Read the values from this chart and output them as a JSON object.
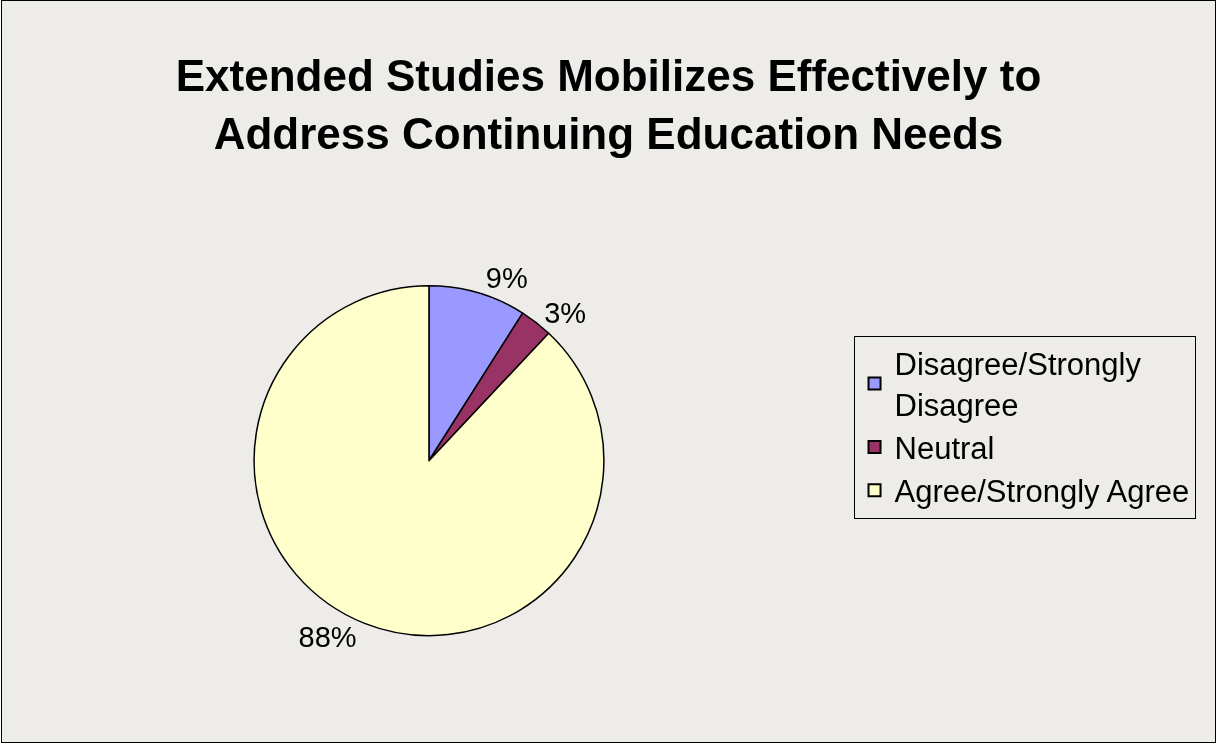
{
  "chart_data": {
    "type": "pie",
    "title": "Extended Studies Mobilizes Effectively to Address Continuing Education Needs",
    "categories": [
      "Disagree/Strongly Disagree",
      "Neutral",
      "Agree/Strongly Agree"
    ],
    "values": [
      9,
      3,
      88
    ],
    "colors": [
      "#9999ff",
      "#993366",
      "#ffffcc"
    ],
    "value_labels": [
      "9%",
      "3%",
      "88%"
    ],
    "legend": "right"
  }
}
